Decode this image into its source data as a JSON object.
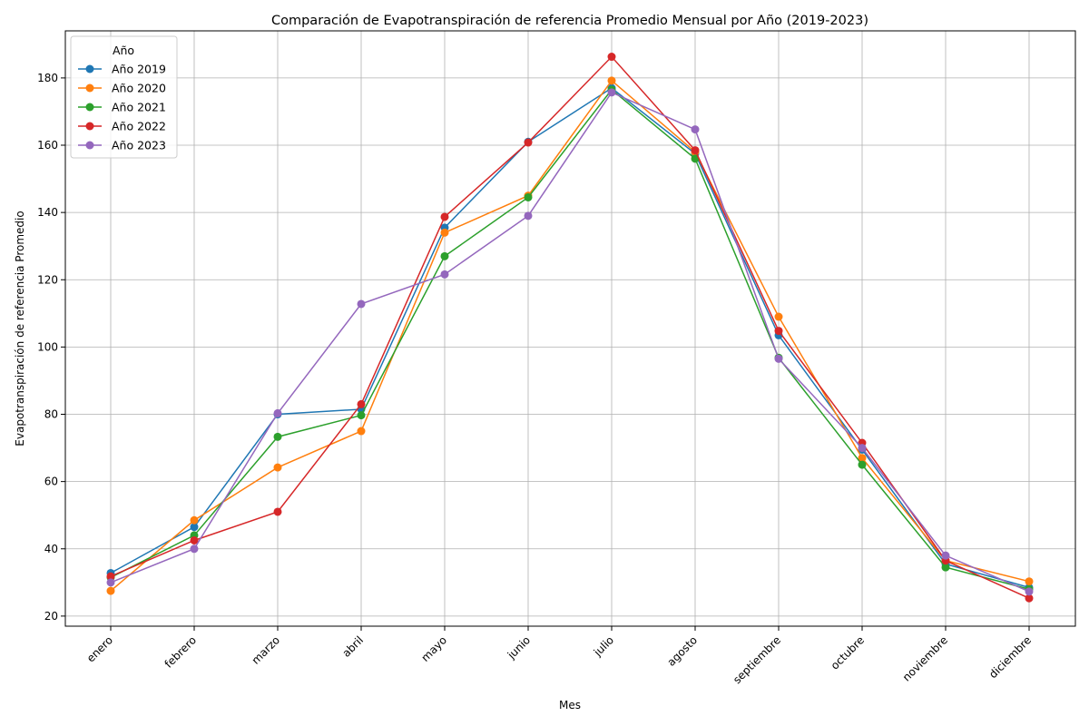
{
  "chart_data": {
    "type": "line",
    "title": "Comparación de Evapotranspiración de referencia Promedio Mensual por Año (2019-2023)",
    "xlabel": "Mes",
    "ylabel": "Evapotranspiración de referencia Promedio",
    "categories": [
      "enero",
      "febrero",
      "marzo",
      "abril",
      "mayo",
      "junio",
      "julio",
      "agosto",
      "septiembre",
      "octubre",
      "noviembre",
      "diciembre"
    ],
    "ylim": [
      17,
      194
    ],
    "yticks": [
      20,
      40,
      60,
      80,
      100,
      120,
      140,
      160,
      180
    ],
    "grid": true,
    "legend": {
      "title": "Año",
      "placement": "top-left"
    },
    "series": [
      {
        "name": "Año 2019",
        "color": "#1f77b4",
        "values": [
          32.8,
          46.5,
          80.0,
          81.5,
          135.5,
          161.0,
          177.0,
          157.5,
          103.5,
          69.5,
          35.5,
          28.5
        ]
      },
      {
        "name": "Año 2020",
        "color": "#ff7f0e",
        "values": [
          27.5,
          48.5,
          64.2,
          75.0,
          134.0,
          145.0,
          179.2,
          158.0,
          109.0,
          67.0,
          36.5,
          30.3
        ]
      },
      {
        "name": "Año 2021",
        "color": "#2ca02c",
        "values": [
          31.5,
          44.0,
          73.3,
          79.7,
          127.0,
          144.5,
          176.5,
          156.0,
          96.8,
          65.0,
          34.5,
          28.0
        ]
      },
      {
        "name": "Año 2022",
        "color": "#d62728",
        "values": [
          31.8,
          42.5,
          51.0,
          83.0,
          138.7,
          160.8,
          186.3,
          158.5,
          104.8,
          71.5,
          36.5,
          25.3
        ]
      },
      {
        "name": "Año 2023",
        "color": "#9467bd",
        "values": [
          30.0,
          40.0,
          80.3,
          112.8,
          121.6,
          139.0,
          175.7,
          164.7,
          96.5,
          70.0,
          38.0,
          27.3
        ]
      }
    ]
  }
}
